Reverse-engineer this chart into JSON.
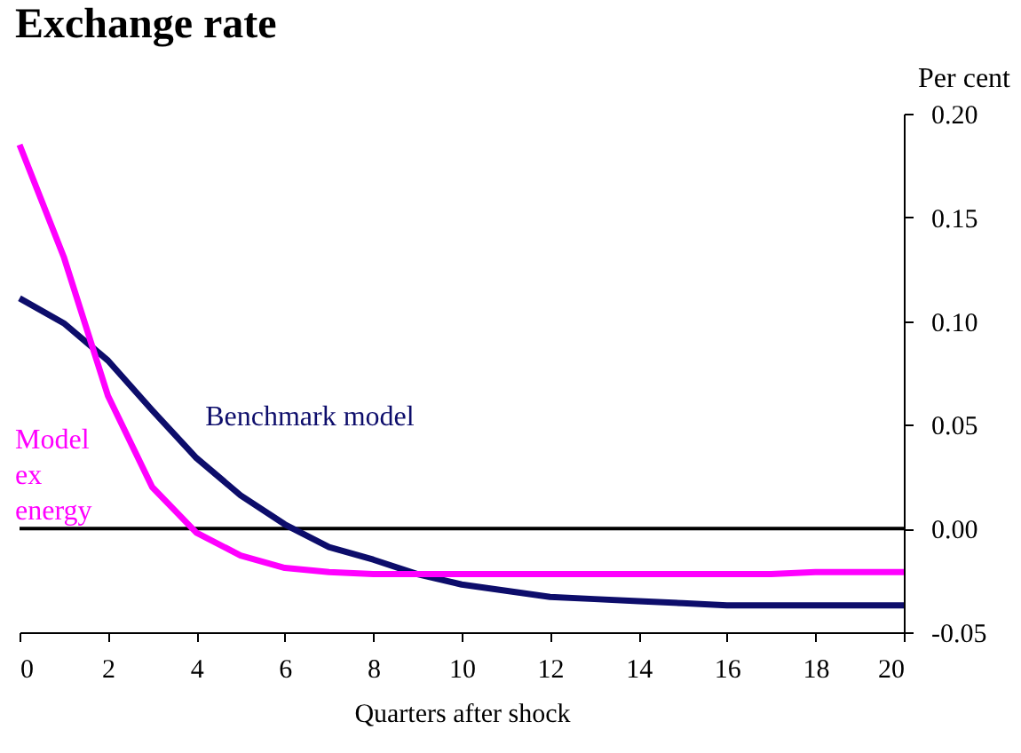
{
  "chart_data": {
    "type": "line",
    "title": "Exchange rate",
    "ylabel": "Per cent",
    "xlabel": "Quarters after shock",
    "x": [
      0,
      1,
      2,
      3,
      4,
      5,
      6,
      7,
      8,
      9,
      10,
      11,
      12,
      13,
      14,
      15,
      16,
      17,
      18,
      19,
      20
    ],
    "series": [
      {
        "name": "Benchmark model",
        "color": "#0d0d6b",
        "values": [
          0.111,
          0.099,
          0.081,
          0.057,
          0.034,
          0.016,
          0.002,
          -0.009,
          -0.015,
          -0.022,
          -0.027,
          -0.03,
          -0.033,
          -0.034,
          -0.035,
          -0.036,
          -0.037,
          -0.037,
          -0.037,
          -0.037,
          -0.037
        ]
      },
      {
        "name": "Model ex energy",
        "color": "#ff00ff",
        "values": [
          0.185,
          0.131,
          0.064,
          0.02,
          -0.002,
          -0.013,
          -0.019,
          -0.021,
          -0.022,
          -0.022,
          -0.022,
          -0.022,
          -0.022,
          -0.022,
          -0.022,
          -0.022,
          -0.022,
          -0.022,
          -0.021,
          -0.021,
          -0.021
        ]
      }
    ],
    "xlim": [
      0,
      20
    ],
    "xticks": [
      0,
      2,
      4,
      6,
      8,
      10,
      12,
      14,
      16,
      18,
      20
    ],
    "ylim": [
      -0.05,
      0.2
    ],
    "yticks": [
      {
        "value": -0.05,
        "label": "-0.05"
      },
      {
        "value": 0,
        "label": "0.00"
      },
      {
        "value": 0.05,
        "label": "0.05"
      },
      {
        "value": 0.1,
        "label": "0.10"
      },
      {
        "value": 0.15,
        "label": "0.15"
      },
      {
        "value": 0.2,
        "label": "0.20"
      }
    ],
    "ref_lines": [
      {
        "axis": "y",
        "value": 0,
        "color": "#000000"
      }
    ],
    "grid": false,
    "legend": false
  }
}
